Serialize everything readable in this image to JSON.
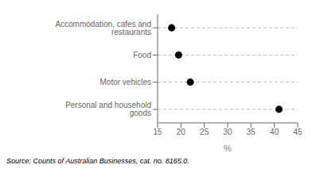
{
  "chart_data": {
    "type": "dot",
    "categories": [
      "Accommodation, cafes and restaurants",
      "Food",
      "Motor vehicles",
      "Personal and household goods"
    ],
    "values": [
      18.0,
      19.5,
      22.0,
      41.0
    ],
    "xlim": [
      15,
      45
    ],
    "xticks": [
      15,
      20,
      25,
      30,
      35,
      40,
      45
    ],
    "xlabel": "%",
    "annotation": "Source: Counts of Australian Businesses, cat. no. 8165.0.",
    "marker": "circle",
    "color": "#000000",
    "line_style": "dashed",
    "grid": false
  }
}
